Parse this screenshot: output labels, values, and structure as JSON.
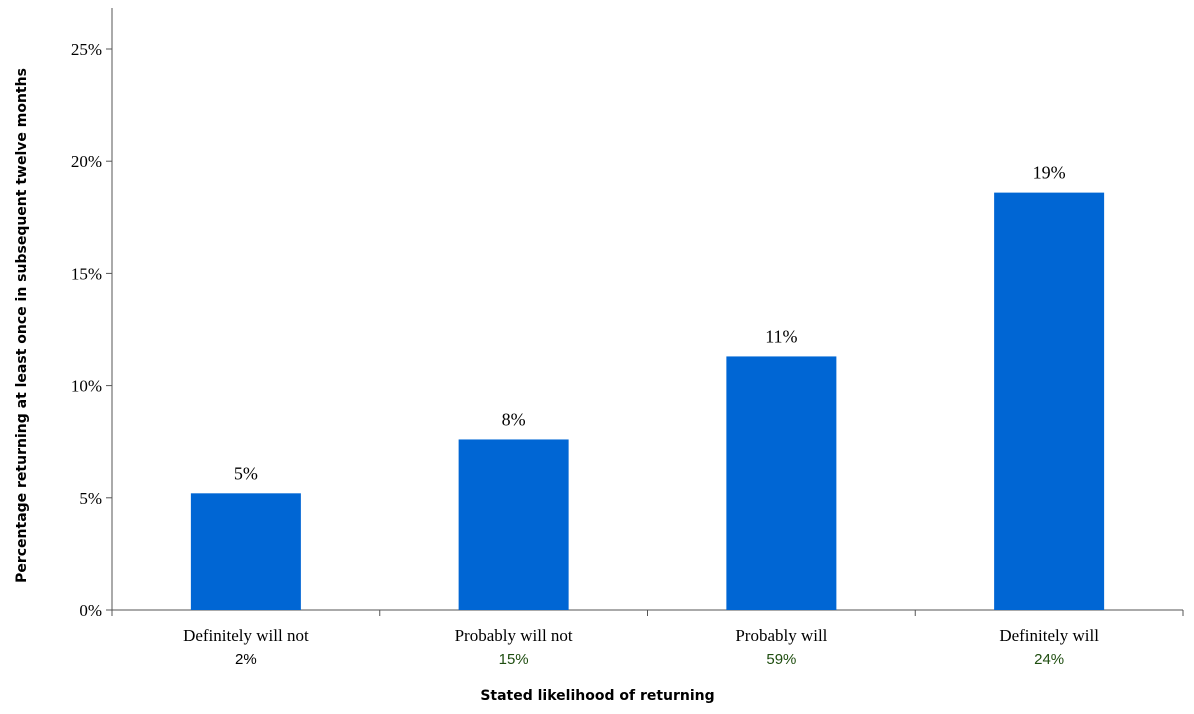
{
  "chart_data": {
    "type": "bar",
    "categories": [
      "Definitely will not",
      "Probably will not",
      "Probably will",
      "Definitely will"
    ],
    "values": [
      5.2,
      7.6,
      11.3,
      18.6
    ],
    "data_labels": [
      "5%",
      "8%",
      "11%",
      "19%"
    ],
    "category_shares": [
      "2%",
      "15%",
      "59%",
      "24%"
    ],
    "ylim": [
      0,
      25
    ],
    "yticks": [
      0,
      5,
      10,
      15,
      20,
      25
    ],
    "ytick_labels": [
      "0%",
      "5%",
      "10%",
      "15%",
      "20%",
      "25%"
    ],
    "xlabel": "Stated likelihood of returning",
    "ylabel": "Percentage returning at least once in subsequent twelve months",
    "grid": false,
    "colors": {
      "bar": "#0066d4",
      "share_text_first": "#000000",
      "share_text_rest": "#1e4d0f",
      "axis": "#555555"
    }
  }
}
